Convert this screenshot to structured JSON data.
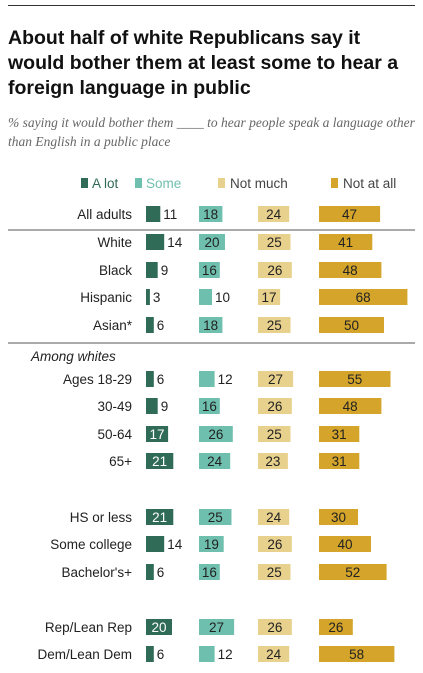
{
  "header": {
    "title": "About half of white Republicans say it would bother them at least some to hear a foreign language in public",
    "subtitle": "% saying it would bother them ____ to hear people speak a language other than English in a public place"
  },
  "chart_data": {
    "type": "bar",
    "stacked": false,
    "legend": "top",
    "series": [
      {
        "name": "A lot",
        "color": "#2f6b57"
      },
      {
        "name": "Some",
        "color": "#6fbfae"
      },
      {
        "name": "Not much",
        "color": "#e8d18c"
      },
      {
        "name": "Not at all",
        "color": "#d4a52a"
      }
    ],
    "section_labels": [
      "Among whites"
    ],
    "rows": [
      {
        "label": "All adults",
        "values": [
          11,
          18,
          24,
          47
        ]
      },
      {
        "label": "White",
        "values": [
          14,
          20,
          25,
          41
        ]
      },
      {
        "label": "Black",
        "values": [
          9,
          16,
          26,
          48
        ]
      },
      {
        "label": "Hispanic",
        "values": [
          3,
          10,
          17,
          68
        ]
      },
      {
        "label": "Asian*",
        "values": [
          6,
          18,
          25,
          50
        ]
      },
      {
        "label": "Ages 18-29",
        "values": [
          6,
          12,
          27,
          55
        ]
      },
      {
        "label": "30-49",
        "values": [
          9,
          16,
          26,
          48
        ]
      },
      {
        "label": "50-64",
        "values": [
          17,
          26,
          25,
          31
        ]
      },
      {
        "label": "65+",
        "values": [
          21,
          24,
          23,
          31
        ]
      },
      {
        "label": "HS or less",
        "values": [
          21,
          25,
          24,
          30
        ]
      },
      {
        "label": "Some college",
        "values": [
          14,
          19,
          26,
          40
        ]
      },
      {
        "label": "Bachelor's+",
        "values": [
          6,
          16,
          25,
          52
        ]
      },
      {
        "label": "Rep/Lean Rep",
        "values": [
          20,
          27,
          26,
          26
        ]
      },
      {
        "label": "Dem/Lean Dem",
        "values": [
          6,
          12,
          24,
          58
        ]
      }
    ]
  }
}
